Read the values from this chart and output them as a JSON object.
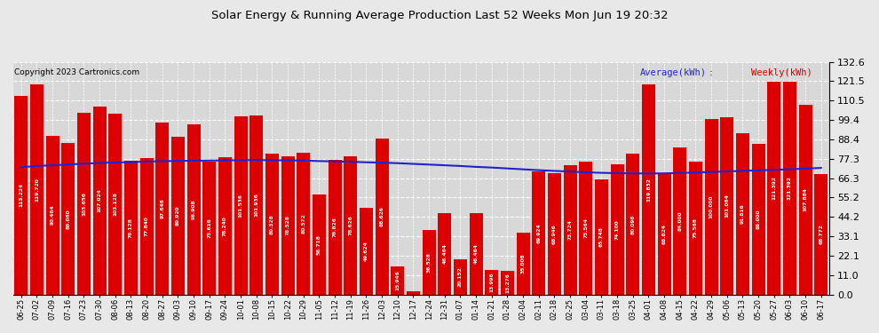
{
  "title": "Solar Energy & Running Average Production Last 52 Weeks Mon Jun 19 20:32",
  "copyright": "Copyright 2023 Cartronics.com",
  "legend_avg": "Average(kWh)",
  "legend_weekly": "Weekly(kWh)",
  "bar_color": "#dd0000",
  "avg_line_color": "#2222cc",
  "weekly_color": "#cc0000",
  "background_color": "#e8e8e8",
  "plot_bg_color": "#d8d8d8",
  "grid_color": "#ffffff",
  "ylim": [
    0,
    132.6
  ],
  "yticks": [
    0.0,
    11.0,
    22.1,
    33.1,
    44.2,
    55.2,
    66.3,
    77.3,
    88.4,
    99.4,
    110.5,
    121.5,
    132.6
  ],
  "categories": [
    "06-25",
    "07-02",
    "07-09",
    "07-16",
    "07-23",
    "07-30",
    "08-06",
    "08-13",
    "08-20",
    "08-27",
    "09-03",
    "09-10",
    "09-17",
    "09-24",
    "10-01",
    "10-08",
    "10-15",
    "10-22",
    "10-29",
    "11-05",
    "11-12",
    "11-19",
    "11-26",
    "12-03",
    "12-10",
    "12-17",
    "12-24",
    "12-31",
    "01-07",
    "01-14",
    "01-21",
    "01-28",
    "02-04",
    "02-11",
    "02-18",
    "02-25",
    "03-04",
    "03-11",
    "03-18",
    "03-25",
    "04-01",
    "04-08",
    "04-15",
    "04-22",
    "04-29",
    "05-06",
    "05-13",
    "05-20",
    "05-27",
    "06-03",
    "06-10",
    "06-17"
  ],
  "values": [
    113.224,
    119.72,
    90.464,
    86.06,
    103.656,
    107.024,
    103.128,
    76.128,
    77.84,
    97.848,
    89.92,
    96.908,
    75.616,
    78.24,
    101.536,
    101.936,
    80.328,
    78.528,
    80.572,
    56.718,
    76.826,
    78.626,
    49.624,
    88.626,
    15.946,
    1.928,
    36.528,
    46.464,
    20.152,
    46.464,
    13.996,
    13.276,
    35.008,
    69.924,
    68.946,
    73.724,
    75.564,
    65.748,
    74.1,
    80.096,
    119.832,
    68.824,
    84.0,
    75.568,
    100.0,
    101.064,
    91.816,
    86.0,
    121.392,
    121.392,
    107.884,
    68.772
  ],
  "avg_values": [
    72.5,
    73.2,
    73.6,
    74.1,
    74.5,
    74.9,
    75.2,
    75.4,
    75.7,
    75.9,
    76.1,
    76.2,
    76.3,
    76.4,
    76.5,
    76.6,
    76.5,
    76.4,
    76.3,
    76.0,
    75.8,
    75.6,
    75.3,
    75.1,
    74.8,
    74.4,
    74.0,
    73.6,
    73.2,
    72.7,
    72.3,
    71.8,
    71.3,
    70.8,
    70.4,
    70.0,
    69.6,
    69.3,
    69.1,
    69.0,
    68.9,
    69.0,
    69.2,
    69.5,
    69.8,
    70.1,
    70.4,
    70.7,
    71.0,
    71.3,
    71.7,
    72.1
  ]
}
